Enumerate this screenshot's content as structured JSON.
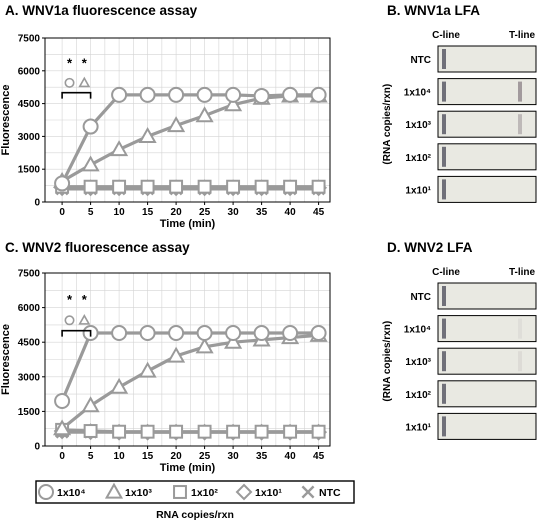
{
  "panels": {
    "a_title": "A. WNV1a fluorescence assay",
    "b_title": "B. WNV1a LFA",
    "c_title": "C. WNV2 fluorescence assay",
    "d_title": "D. WNV2 LFA"
  },
  "chart_data": [
    {
      "type": "line",
      "title": "A. WNV1a fluorescence assay",
      "xlabel": "Time (min)",
      "ylabel": "Fluorescence",
      "xlim": [
        -3,
        47
      ],
      "ylim": [
        0,
        7500
      ],
      "x_ticks": [
        0,
        5,
        10,
        15,
        20,
        25,
        30,
        35,
        40,
        45
      ],
      "y_ticks": [
        0,
        1500,
        3000,
        4500,
        6000,
        7500
      ],
      "grid": true,
      "x": [
        0,
        5,
        10,
        15,
        20,
        25,
        30,
        35,
        40,
        45
      ],
      "series": [
        {
          "name": "1x10⁴",
          "marker": "circle",
          "values": [
            850,
            3450,
            4900,
            4900,
            4900,
            4900,
            4900,
            4850,
            4900,
            4900
          ]
        },
        {
          "name": "1x10³",
          "marker": "triangle",
          "values": [
            950,
            1700,
            2400,
            3000,
            3500,
            3950,
            4450,
            4750,
            4850,
            4850
          ]
        },
        {
          "name": "1x10²",
          "marker": "square",
          "values": [
            700,
            700,
            700,
            700,
            700,
            700,
            700,
            700,
            700,
            700
          ]
        },
        {
          "name": "1x10¹",
          "marker": "diamond",
          "values": [
            650,
            650,
            650,
            650,
            650,
            650,
            650,
            650,
            650,
            650
          ]
        },
        {
          "name": "NTC",
          "marker": "x",
          "values": [
            600,
            600,
            600,
            600,
            600,
            600,
            600,
            600,
            600,
            600
          ]
        }
      ],
      "annotations": {
        "stars": [
          "*",
          "*"
        ],
        "marker_circle": "circle",
        "marker_triangle": "triangle"
      }
    },
    {
      "type": "line",
      "title": "C. WNV2 fluorescence assay",
      "xlabel": "Time (min)",
      "ylabel": "Fluorescence",
      "xlim": [
        -3,
        47
      ],
      "ylim": [
        0,
        7500
      ],
      "x_ticks": [
        0,
        5,
        10,
        15,
        20,
        25,
        30,
        35,
        40,
        45
      ],
      "y_ticks": [
        0,
        1500,
        3000,
        4500,
        6000,
        7500
      ],
      "grid": true,
      "x": [
        0,
        5,
        10,
        15,
        20,
        25,
        30,
        35,
        40,
        45
      ],
      "series": [
        {
          "name": "1x10⁴",
          "marker": "circle",
          "values": [
            1950,
            4900,
            4900,
            4900,
            4900,
            4900,
            4900,
            4900,
            4900,
            4900
          ]
        },
        {
          "name": "1x10³",
          "marker": "triangle",
          "values": [
            750,
            1750,
            2550,
            3250,
            3900,
            4300,
            4500,
            4600,
            4700,
            4800
          ]
        },
        {
          "name": "1x10²",
          "marker": "square",
          "values": [
            700,
            650,
            620,
            620,
            620,
            620,
            620,
            620,
            620,
            620
          ]
        },
        {
          "name": "1x10¹",
          "marker": "diamond",
          "values": [
            650,
            620,
            600,
            600,
            600,
            600,
            600,
            600,
            600,
            600
          ]
        },
        {
          "name": "NTC",
          "marker": "x",
          "values": [
            600,
            600,
            600,
            600,
            600,
            600,
            600,
            600,
            600,
            600
          ]
        }
      ],
      "annotations": {
        "stars": [
          "*",
          "*"
        ],
        "marker_circle": "circle",
        "marker_triangle": "triangle"
      }
    }
  ],
  "lfa": {
    "c_line": "C-line",
    "t_line": "T-line",
    "axis_label": "(RNA copies/rxn)",
    "rows": [
      {
        "label": "NTC",
        "t_intensity_b": 0.0,
        "t_intensity_d": 0.0
      },
      {
        "label": "1x10⁴",
        "t_intensity_b": 0.75,
        "t_intensity_d": 0.1
      },
      {
        "label": "1x10³",
        "t_intensity_b": 0.45,
        "t_intensity_d": 0.12
      },
      {
        "label": "1x10²",
        "t_intensity_b": 0.0,
        "t_intensity_d": 0.0
      },
      {
        "label": "1x10¹",
        "t_intensity_b": 0.0,
        "t_intensity_d": 0.0
      }
    ]
  },
  "legend": {
    "items": [
      {
        "label": "1x10⁴",
        "marker": "circle"
      },
      {
        "label": "1x10³",
        "marker": "triangle"
      },
      {
        "label": "1x10²",
        "marker": "square"
      },
      {
        "label": "1x10¹",
        "marker": "diamond"
      },
      {
        "label": "NTC",
        "marker": "x"
      }
    ],
    "caption": "RNA copies/rxn"
  },
  "colors": {
    "series": "#9a9a9a",
    "marker_fill": "#ffffff",
    "grid": "#d4d4d4",
    "strip_bg": "#e9e9e2",
    "c_band": "#5a5a66",
    "t_band": "#8a7f86"
  }
}
